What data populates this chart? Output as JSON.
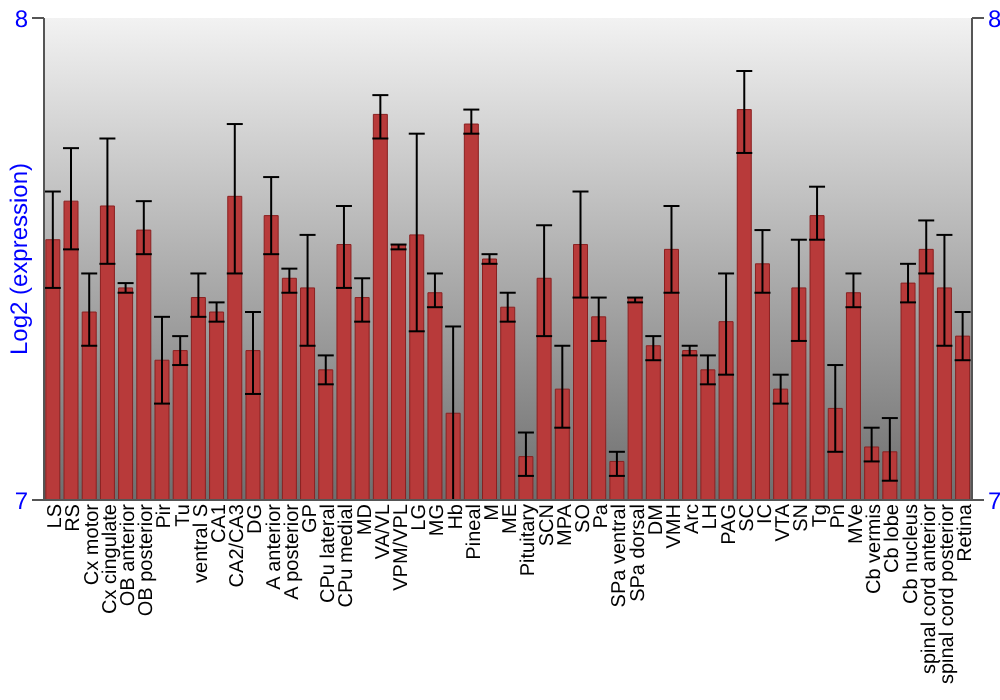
{
  "chart_data": {
    "type": "bar",
    "ylabel": "Log2 (expression)",
    "categories": [
      "LS",
      "RS",
      "Cx motor",
      "Cx cingulate",
      "OB anterior",
      "OB posterior",
      "Pir",
      "Tu",
      "ventral S",
      "CA1",
      "CA2/CA3",
      "DG",
      "A anterior",
      "A posterior",
      "GP",
      "CPu lateral",
      "CPu medial",
      "MD",
      "VA/VL",
      "VPM/VPL",
      "LG",
      "MG",
      "Hb",
      "Pineal",
      "M",
      "ME",
      "Pituitary",
      "SCN",
      "MPA",
      "SO",
      "Pa",
      "SPa ventral",
      "SPa dorsal",
      "DM",
      "VMH",
      "Arc",
      "LH",
      "PAG",
      "SC",
      "IC",
      "VTA",
      "SN",
      "Tg",
      "Pn",
      "MVe",
      "Cb vermis",
      "Cb lobe",
      "Cb nucleus",
      "spinal cord anterior",
      "spinal cord posterior",
      "Retina"
    ],
    "values": [
      7.54,
      7.62,
      7.39,
      7.61,
      7.44,
      7.56,
      7.29,
      7.31,
      7.42,
      7.39,
      7.63,
      7.31,
      7.59,
      7.46,
      7.44,
      7.27,
      7.53,
      7.42,
      7.8,
      7.53,
      7.55,
      7.43,
      7.18,
      7.78,
      7.5,
      7.4,
      7.09,
      7.46,
      7.23,
      7.53,
      7.38,
      7.08,
      7.42,
      7.32,
      7.52,
      7.31,
      7.27,
      7.37,
      7.81,
      7.49,
      7.23,
      7.44,
      7.59,
      7.19,
      7.43,
      7.11,
      7.1,
      7.45,
      7.52,
      7.44,
      7.34
    ],
    "errors": [
      [
        7.44,
        7.64
      ],
      [
        7.52,
        7.73
      ],
      [
        7.32,
        7.47
      ],
      [
        7.49,
        7.75
      ],
      [
        7.43,
        7.45
      ],
      [
        7.51,
        7.62
      ],
      [
        7.2,
        7.38
      ],
      [
        7.28,
        7.34
      ],
      [
        7.38,
        7.47
      ],
      [
        7.37,
        7.41
      ],
      [
        7.47,
        7.78
      ],
      [
        7.22,
        7.39
      ],
      [
        7.51,
        7.67
      ],
      [
        7.43,
        7.48
      ],
      [
        7.32,
        7.55
      ],
      [
        7.24,
        7.3
      ],
      [
        7.44,
        7.61
      ],
      [
        7.37,
        7.46
      ],
      [
        7.75,
        7.84
      ],
      [
        7.52,
        7.53
      ],
      [
        7.35,
        7.76
      ],
      [
        7.4,
        7.47
      ],
      [
        7.0,
        7.36
      ],
      [
        7.76,
        7.81
      ],
      [
        7.49,
        7.51
      ],
      [
        7.37,
        7.43
      ],
      [
        7.05,
        7.14
      ],
      [
        7.34,
        7.57
      ],
      [
        7.15,
        7.32
      ],
      [
        7.42,
        7.64
      ],
      [
        7.33,
        7.42
      ],
      [
        7.05,
        7.1
      ],
      [
        7.41,
        7.42
      ],
      [
        7.29,
        7.34
      ],
      [
        7.43,
        7.61
      ],
      [
        7.3,
        7.32
      ],
      [
        7.24,
        7.3
      ],
      [
        7.26,
        7.47
      ],
      [
        7.72,
        7.89
      ],
      [
        7.43,
        7.56
      ],
      [
        7.2,
        7.26
      ],
      [
        7.33,
        7.54
      ],
      [
        7.54,
        7.65
      ],
      [
        7.1,
        7.28
      ],
      [
        7.4,
        7.47
      ],
      [
        7.08,
        7.15
      ],
      [
        7.04,
        7.17
      ],
      [
        7.41,
        7.49
      ],
      [
        7.47,
        7.58
      ],
      [
        7.32,
        7.55
      ],
      [
        7.29,
        7.39
      ]
    ],
    "color": "#b83a3a",
    "ylim": [
      7,
      8
    ],
    "yticks": [
      7,
      8
    ],
    "y2lim": [
      7,
      8
    ],
    "y2ticks": [
      7,
      8
    ],
    "grid": false
  }
}
